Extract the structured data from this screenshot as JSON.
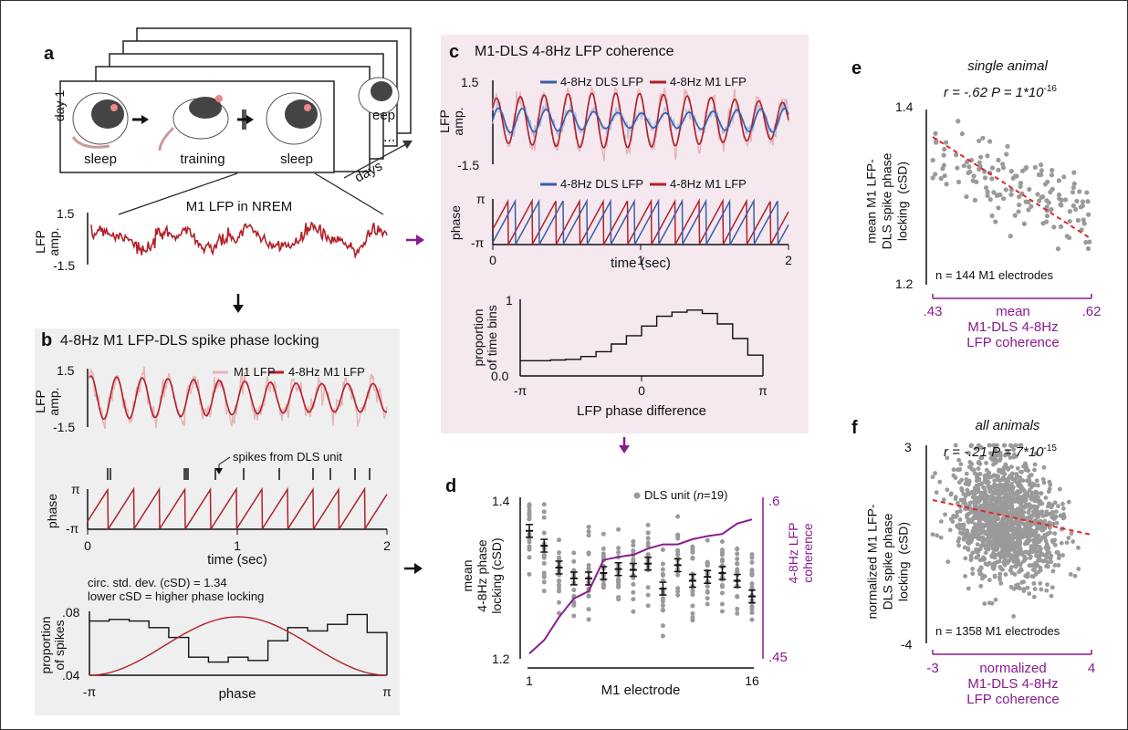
{
  "colors": {
    "m1": "#b22028",
    "m1_light": "#e6b3b6",
    "dls": "#3b5ca8",
    "dls_light": "#aebfe0",
    "purple": "#8b1a8f",
    "grey": "#9a9a9a",
    "red_dash": "#e3242b"
  },
  "panel_letters": {
    "a": "a",
    "b": "b",
    "c": "c",
    "d": "d",
    "e": "e",
    "f": "f"
  },
  "panel_a": {
    "day_label": "day 1",
    "stage_labels": [
      "sleep",
      "training",
      "sleep"
    ],
    "back_label": "eep",
    "days_label": "days",
    "ellipsis": "...",
    "lfp_title": "M1 LFP in NREM",
    "ylabel": "LFP\namp.",
    "y_ticks": [
      "1.5",
      "-1.5"
    ]
  },
  "panel_b": {
    "title": "4-8Hz M1 LFP-DLS spike phase locking",
    "legend": [
      "M1 LFP",
      "4-8Hz M1 LFP"
    ],
    "ylabel_amp": "LFP\namp.",
    "y_ticks_amp": [
      "1.5",
      "-1.5"
    ],
    "spikes_label": "spikes from DLS unit",
    "ylabel_phase": "phase",
    "phase_ticks": [
      "π",
      "-π"
    ],
    "x_ticks": [
      "0",
      "1",
      "2"
    ],
    "xlabel": "time (sec)",
    "csd_line1": "circ. std. dev. (cSD) = 1.34",
    "csd_line2": "lower cSD = higher phase locking",
    "hist_ylabel": "proportion\nof spikes",
    "hist_y_ticks": [
      ".08",
      ".04"
    ],
    "hist_x_ticks": [
      "-π",
      "π"
    ],
    "hist_xlabel": "phase"
  },
  "panel_c": {
    "title": "M1-DLS 4-8Hz LFP coherence",
    "legend": [
      "4-8Hz DLS LFP",
      "4-8Hz M1 LFP"
    ],
    "ylabel_amp": "LFP\namp.",
    "y_ticks_amp": [
      "1.5",
      "-1.5"
    ],
    "ylabel_phase": "phase",
    "phase_ticks": [
      "π",
      "-π"
    ],
    "x_ticks": [
      "0",
      "1",
      "2"
    ],
    "xlabel": "time (sec)",
    "hist_ylabel": "proportion\nof time bins",
    "hist_y_ticks": [
      "1",
      "0.0"
    ],
    "hist_x_ticks": [
      "-π",
      "0",
      "π"
    ],
    "hist_xlabel": "LFP phase difference"
  },
  "panel_d": {
    "legend": "DLS unit (",
    "legend_n": "n",
    "legend_rest": "=19)",
    "ylabel": "mean\n4-8Hz phase\nlocking (cSD)",
    "y_ticks": [
      "1.4",
      "1.2"
    ],
    "y2label": "4-8Hz LFP\ncoherence",
    "y2_ticks": [
      ".6",
      ".45"
    ],
    "x_ticks": [
      "1",
      "16"
    ],
    "xlabel": "M1 electrode"
  },
  "panel_e": {
    "title": "single animal",
    "stat": "r = -.62 P = 1*10",
    "stat_exp": "-16",
    "ylabel": "mean M1 LFP-\nDLS spike phase\nlocking  (cSD)",
    "y_ticks": [
      "1.4",
      "1.2"
    ],
    "x_ticks": [
      ".43",
      ".62"
    ],
    "xlabel": "mean\nM1-DLS 4-8Hz\nLFP coherence",
    "n_label": "n = 144 M1 electrodes"
  },
  "panel_f": {
    "title": "all animals",
    "stat": "r = -.21 P = 7*10",
    "stat_exp": "-15",
    "ylabel": "normalized M1 LFP-\nDLS spike phase\nlocking  (cSD)",
    "y_ticks": [
      "3",
      "-4"
    ],
    "x_ticks": [
      "-3",
      "4"
    ],
    "xlabel": "normalized\nM1-DLS 4-8Hz\nLFP coherence",
    "n_label": "n = 1358 M1 electrodes"
  },
  "chart_data": [
    {
      "type": "line",
      "panel": "b-hist",
      "series": [
        {
          "name": "",
          "values": [
            0.073,
            0.074,
            0.073,
            0.069,
            0.063,
            0.051,
            0.048,
            0.051,
            0.049,
            0.061,
            0.069,
            0.067,
            0.071,
            0.077,
            0.066
          ]
        }
      ],
      "ylim": [
        0.04,
        0.08
      ],
      "xlim": [
        "-π",
        "π"
      ]
    },
    {
      "type": "bar",
      "panel": "c-hist",
      "values": [
        0.22,
        0.22,
        0.23,
        0.24,
        0.28,
        0.35,
        0.46,
        0.58,
        0.72,
        0.86,
        0.92,
        0.95,
        0.9,
        0.75,
        0.54,
        0.3
      ],
      "ylim": [
        0,
        1
      ],
      "xlim": [
        "-π",
        "π"
      ]
    },
    {
      "type": "line",
      "panel": "d",
      "categories": [
        1,
        2,
        3,
        4,
        5,
        6,
        7,
        8,
        9,
        10,
        11,
        12,
        13,
        14,
        15,
        16
      ],
      "series": [
        {
          "name": "",
          "values": [
            1.364,
            1.345,
            1.317,
            1.303,
            1.303,
            1.31,
            1.315,
            1.314,
            1.322,
            1.29,
            1.32,
            1.3,
            1.305,
            1.31,
            1.3,
            1.28
          ]
        },
        {
          "name": "",
          "values": [
            0.455,
            0.468,
            0.49,
            0.508,
            0.515,
            0.545,
            0.548,
            0.55,
            0.556,
            0.56,
            0.56,
            0.565,
            0.568,
            0.57,
            0.58,
            0.584
          ]
        }
      ],
      "ylim": [
        1.2,
        1.4
      ],
      "y2lim": [
        0.45,
        0.6
      ]
    },
    {
      "type": "scatter",
      "panel": "e",
      "xlim": [
        0.43,
        0.62
      ],
      "ylim": [
        1.2,
        1.4
      ],
      "n": 144,
      "r": -0.62
    },
    {
      "type": "scatter",
      "panel": "f",
      "xlim": [
        -3,
        4
      ],
      "ylim": [
        -4,
        3
      ],
      "n": 1358,
      "r": -0.21
    }
  ]
}
